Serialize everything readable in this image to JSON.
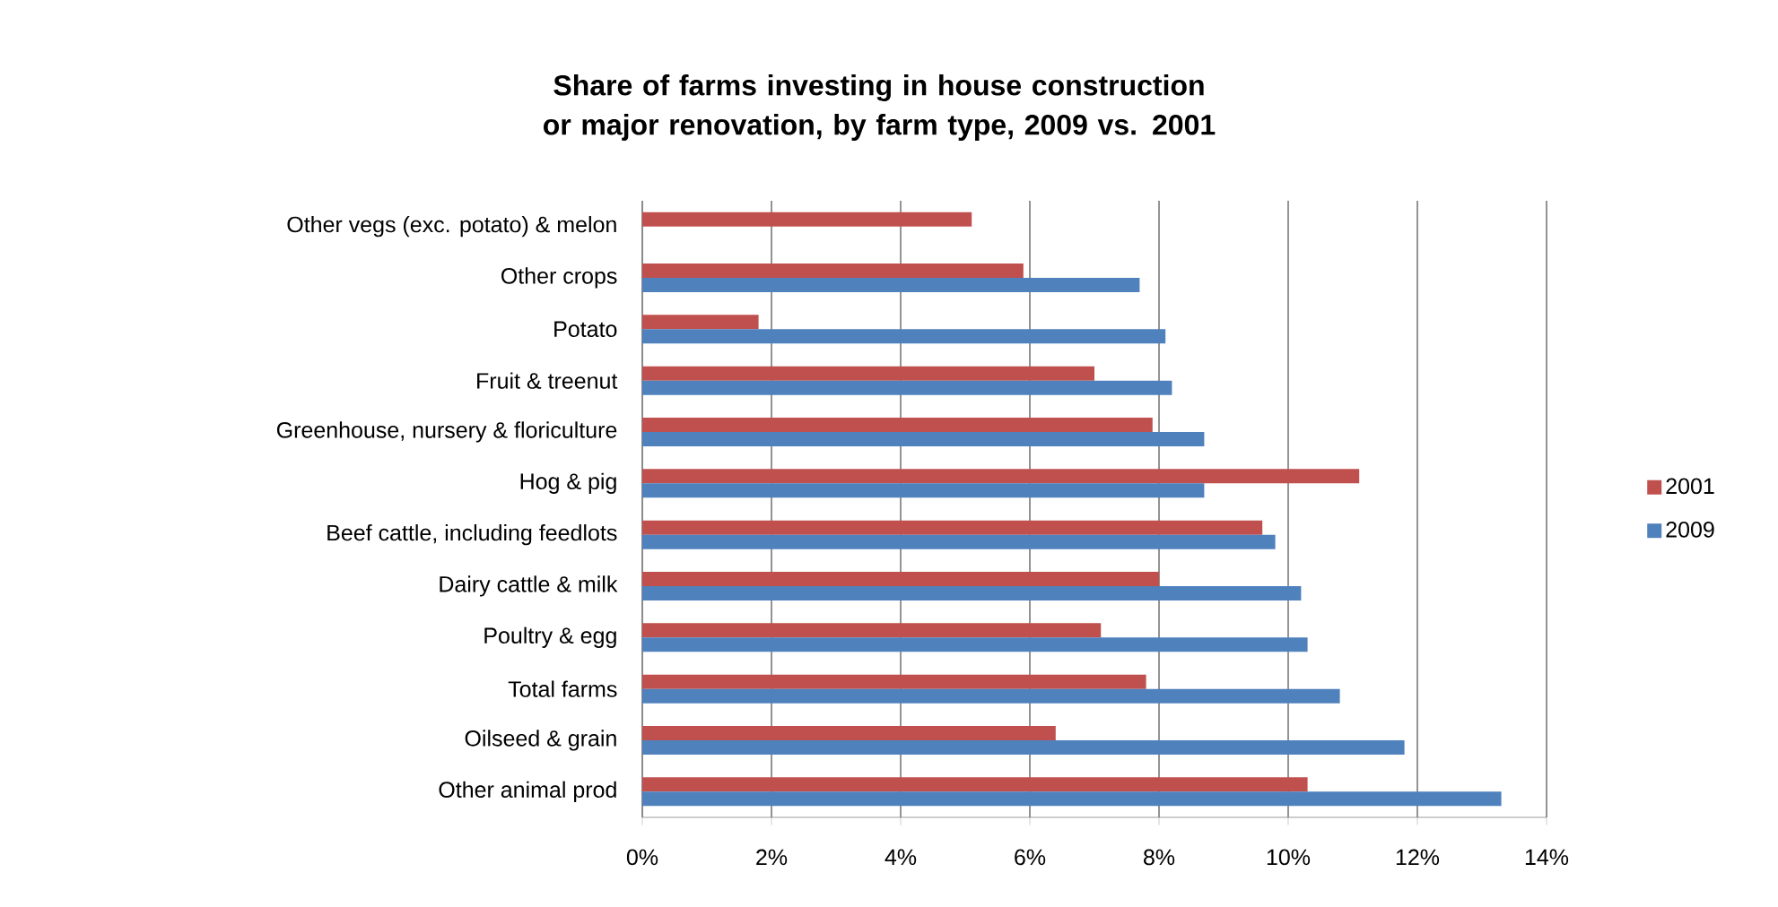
{
  "chart_data": {
    "type": "bar",
    "orientation": "horizontal",
    "title": "Share of farms investing in house construction or major renovation, by farm type, 2009 vs. 2001",
    "categories": [
      "Other vegs (exc. potato) & melon",
      "Other crops",
      "Potato",
      "Fruit & treenut",
      "Greenhouse, nursery & floriculture",
      "Hog & pig",
      "Beef cattle, including feedlots",
      "Dairy cattle & milk",
      "Poultry & egg",
      "Total farms",
      "Oilseed & grain",
      "Other animal prod"
    ],
    "series": [
      {
        "name": "2001",
        "color": "#c0504d",
        "values": [
          5.1,
          5.9,
          1.8,
          7.0,
          7.9,
          11.1,
          9.6,
          8.0,
          7.1,
          7.8,
          6.4,
          10.3
        ]
      },
      {
        "name": "2009",
        "color": "#4f81bd",
        "values": [
          null,
          7.7,
          8.1,
          8.2,
          8.7,
          8.7,
          9.8,
          10.2,
          10.3,
          10.8,
          11.8,
          13.3
        ]
      }
    ],
    "xlim": [
      0,
      14
    ],
    "xticks": [
      {
        "value": 0,
        "label": "0%"
      },
      {
        "value": 2,
        "label": "2%"
      },
      {
        "value": 4,
        "label": "4%"
      },
      {
        "value": 6,
        "label": "6%"
      },
      {
        "value": 8,
        "label": "8%"
      },
      {
        "value": 10,
        "label": "10%"
      },
      {
        "value": 12,
        "label": "12%"
      },
      {
        "value": 14,
        "label": "14%"
      }
    ],
    "grid": "x",
    "legend": "right"
  }
}
